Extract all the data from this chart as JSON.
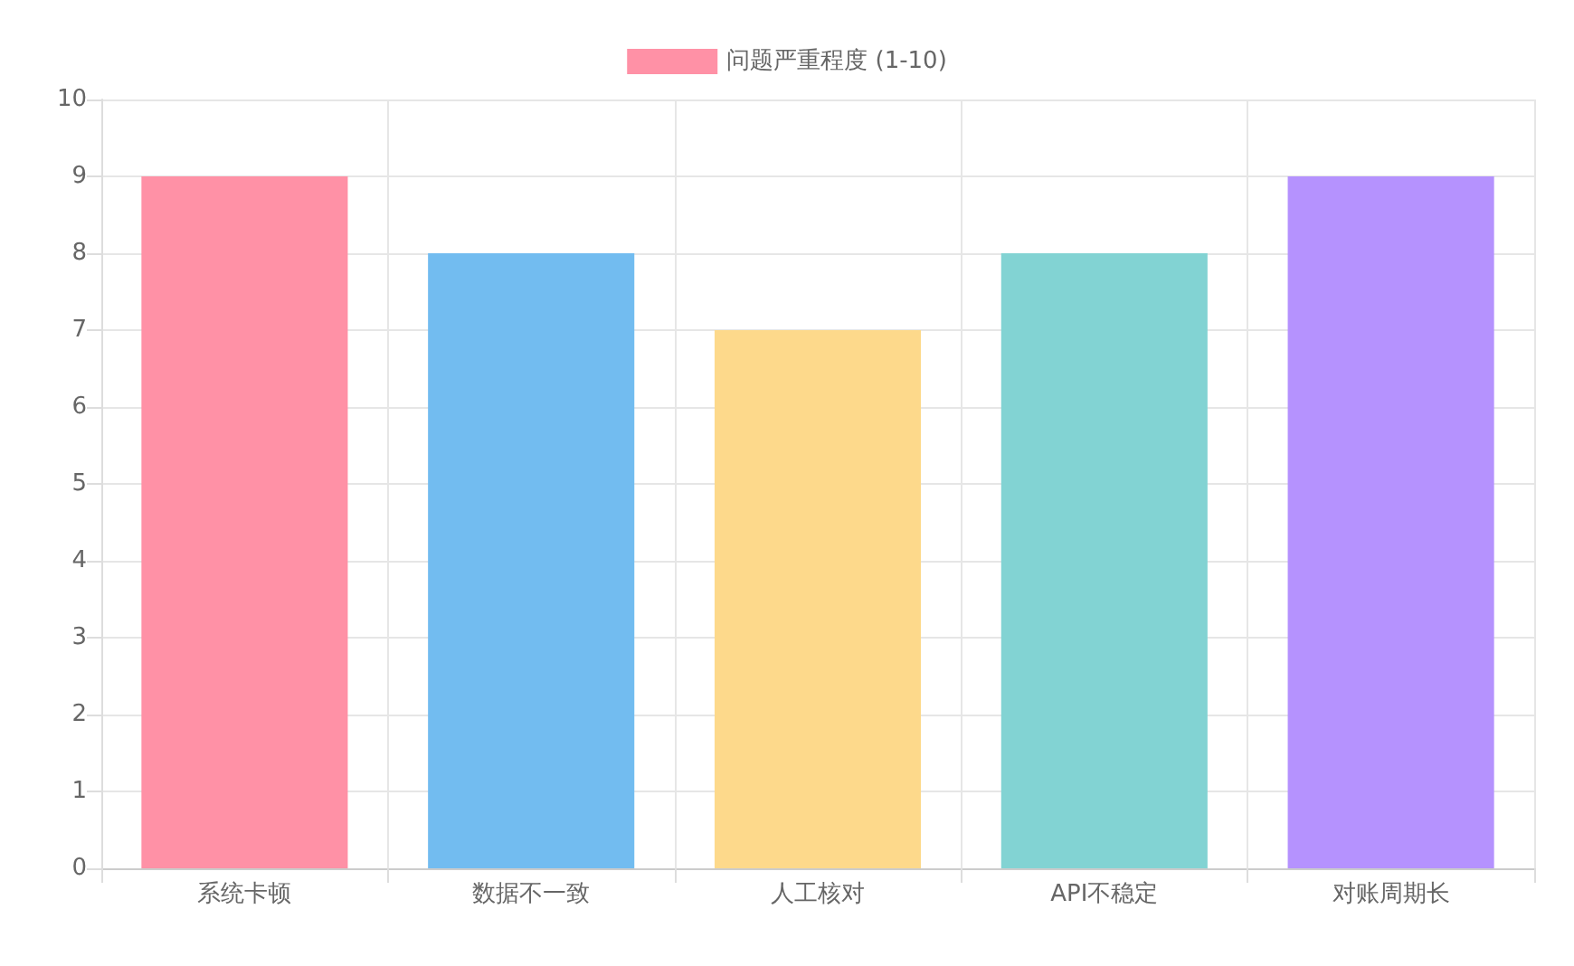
{
  "chart_data": {
    "type": "bar",
    "categories": [
      "系统卡顿",
      "数据不一致",
      "人工核对",
      "API不稳定",
      "对账周期长"
    ],
    "series": [
      {
        "name": "问题严重程度 (1-10)",
        "color": "#ff91a6",
        "colors": [
          "#ff91a6",
          "#72bcf0",
          "#fdd98b",
          "#82d3d3",
          "#b592fe"
        ],
        "values": [
          9,
          8,
          7,
          8,
          9
        ]
      }
    ],
    "ylim": [
      0,
      10
    ],
    "yticks": [
      0,
      1,
      2,
      3,
      4,
      5,
      6,
      7,
      8,
      9,
      10
    ],
    "grid": true,
    "legend": "top"
  }
}
